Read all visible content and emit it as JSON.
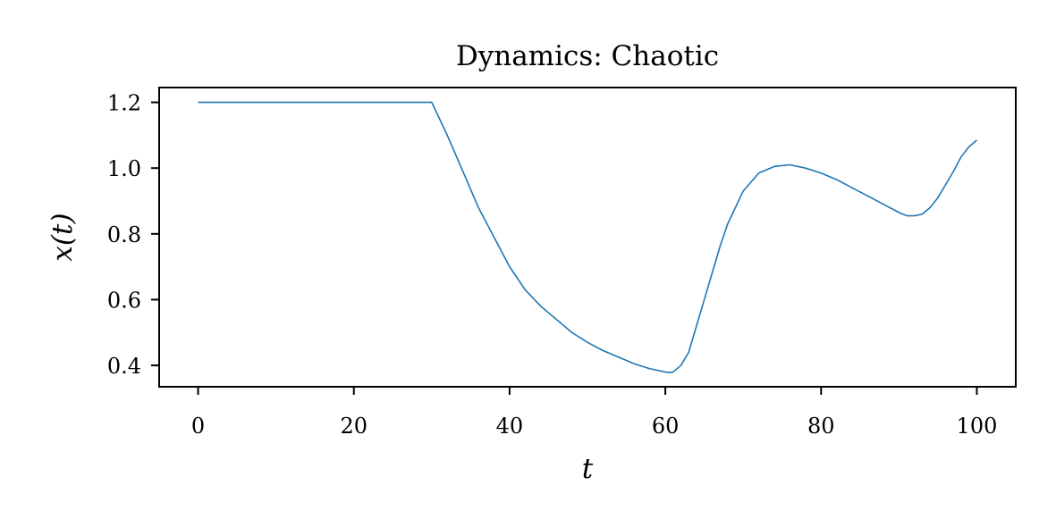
{
  "chart_data": {
    "type": "line",
    "title": "Dynamics: Chaotic",
    "xlabel": "t",
    "ylabel": "x(t)",
    "xlim": [
      -5,
      105
    ],
    "ylim": [
      0.335,
      1.245
    ],
    "xticks": [
      0,
      20,
      40,
      60,
      80,
      100
    ],
    "xtick_labels": [
      "0",
      "20",
      "40",
      "60",
      "80",
      "100"
    ],
    "yticks": [
      0.4,
      0.6,
      0.8,
      1.0,
      1.2
    ],
    "ytick_labels": [
      "0.4",
      "0.6",
      "0.8",
      "1.0",
      "1.2"
    ],
    "grid": false,
    "legend": "none",
    "colors": {
      "line": "#1f77b4",
      "axes": "#000000"
    },
    "series": [
      {
        "x": [
          0,
          10,
          20,
          30,
          32,
          34,
          36,
          38,
          40,
          42,
          44,
          46,
          48,
          50,
          52,
          54,
          56,
          58,
          60,
          60.5,
          61,
          62,
          63,
          64,
          65,
          66,
          67,
          68,
          70,
          72,
          74,
          76,
          78,
          80,
          82,
          84,
          86,
          88,
          90,
          91,
          92,
          93,
          94,
          95,
          96,
          97,
          98,
          99,
          100
        ],
        "y": [
          1.2,
          1.2,
          1.2,
          1.2,
          1.1,
          0.99,
          0.88,
          0.79,
          0.7,
          0.63,
          0.58,
          0.54,
          0.5,
          0.47,
          0.445,
          0.425,
          0.405,
          0.39,
          0.38,
          0.378,
          0.38,
          0.4,
          0.44,
          0.52,
          0.6,
          0.68,
          0.76,
          0.83,
          0.93,
          0.985,
          1.005,
          1.01,
          1.0,
          0.985,
          0.965,
          0.94,
          0.915,
          0.89,
          0.865,
          0.855,
          0.855,
          0.86,
          0.88,
          0.91,
          0.95,
          0.99,
          1.035,
          1.065,
          1.085
        ]
      }
    ]
  }
}
